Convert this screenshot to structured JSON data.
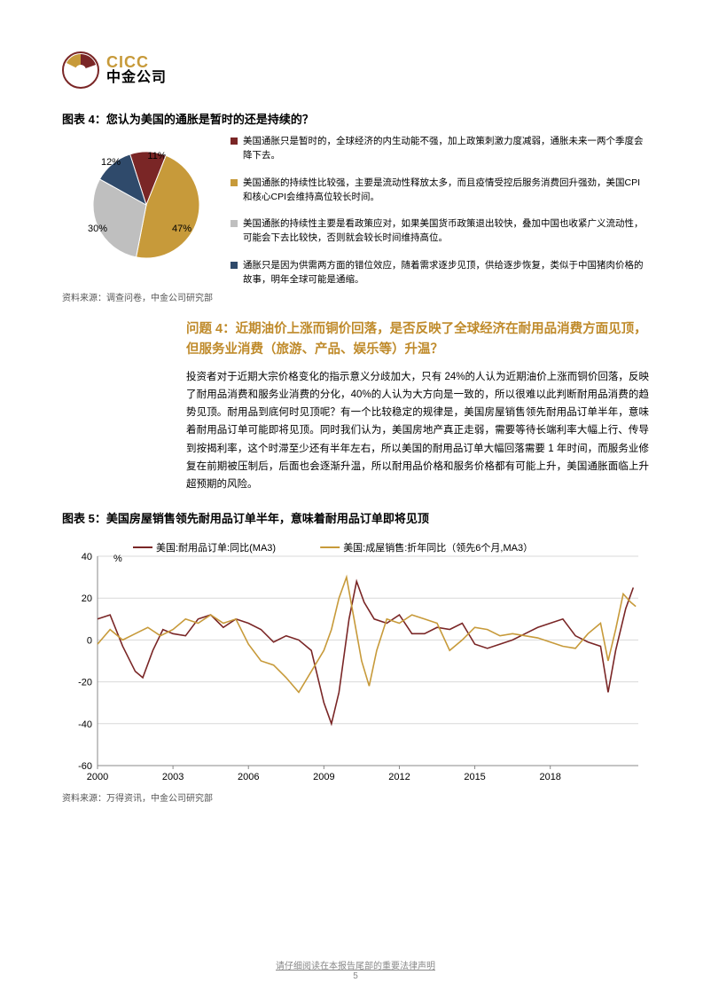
{
  "logo": {
    "en": "CICC",
    "cn": "中金公司"
  },
  "chart4": {
    "title": "图表 4：您认为美国的通胀是暂时的还是持续的？",
    "type": "pie",
    "slices": [
      {
        "label": "11%",
        "value": 11,
        "color": "#7a2626"
      },
      {
        "label": "47%",
        "value": 47,
        "color": "#c79a3a"
      },
      {
        "label": "30%",
        "value": 30,
        "color": "#bfbfbf"
      },
      {
        "label": "12%",
        "value": 12,
        "color": "#2f4a6b"
      }
    ],
    "legend": [
      {
        "color": "#7a2626",
        "text": "美国通胀只是暂时的，全球经济的内生动能不强，加上政策刺激力度减弱，通胀未来一两个季度会降下去。"
      },
      {
        "color": "#c79a3a",
        "text": "美国通胀的持续性比较强，主要是流动性释放太多，而且疫情受控后服务消费回升强劲，美国CPI和核心CPI会维持高位较长时间。"
      },
      {
        "color": "#bfbfbf",
        "text": "美国通胀的持续性主要是看政策应对，如果美国货币政策退出较快，叠加中国也收紧广义流动性，可能会下去比较快，否则就会较长时间维持高位。"
      },
      {
        "color": "#2f4a6b",
        "text": "通胀只是因为供需两方面的错位效应，随着需求逐步见顶，供给逐步恢复，类似于中国猪肉价格的故事，明年全球可能是通缩。"
      }
    ],
    "source": "资料来源：调查问卷，中金公司研究部"
  },
  "question4": {
    "title": "问题 4：近期油价上涨而铜价回落，是否反映了全球经济在耐用品消费方面见顶，但服务业消费（旅游、产品、娱乐等）升温？",
    "body": "投资者对于近期大宗价格变化的指示意义分歧加大，只有 24%的人认为近期油价上涨而铜价回落，反映了耐用品消费和服务业消费的分化，40%的人认为大方向是一致的，所以很难以此判断耐用品消费的趋势见顶。耐用品到底何时见顶呢？有一个比较稳定的规律是，美国房屋销售领先耐用品订单半年，意味着耐用品订单可能即将见顶。同时我们认为，美国房地产真正走弱，需要等待长端利率大幅上行、传导到按揭利率，这个时滞至少还有半年左右，所以美国的耐用品订单大幅回落需要 1 年时间，而服务业修复在前期被压制后，后面也会逐渐升温，所以耐用品价格和服务价格都有可能上升，美国通胀面临上升超预期的风险。"
  },
  "chart5": {
    "title": "图表 5：美国房屋销售领先耐用品订单半年，意味着耐用品订单即将见顶",
    "type": "line",
    "ylabel": "%",
    "ylim": [
      -60,
      40
    ],
    "ytick_step": 20,
    "xticks": [
      "2000",
      "2003",
      "2006",
      "2009",
      "2012",
      "2015",
      "2018"
    ],
    "xrange": [
      2000,
      2021.5
    ],
    "grid_color": "#d9d9d9",
    "bg_color": "#ffffff",
    "axis_color": "#888888",
    "series": [
      {
        "name": "美国:耐用品订单:同比(MA3)",
        "color": "#7a2626",
        "width": 1.6,
        "points": [
          [
            2000.0,
            10
          ],
          [
            2000.5,
            12
          ],
          [
            2001.0,
            -3
          ],
          [
            2001.5,
            -15
          ],
          [
            2001.8,
            -18
          ],
          [
            2002.2,
            -5
          ],
          [
            2002.6,
            5
          ],
          [
            2003.0,
            3
          ],
          [
            2003.5,
            2
          ],
          [
            2004.0,
            10
          ],
          [
            2004.5,
            12
          ],
          [
            2005.0,
            6
          ],
          [
            2005.5,
            10
          ],
          [
            2006.0,
            8
          ],
          [
            2006.5,
            5
          ],
          [
            2007.0,
            -1
          ],
          [
            2007.5,
            2
          ],
          [
            2008.0,
            0
          ],
          [
            2008.5,
            -5
          ],
          [
            2009.0,
            -30
          ],
          [
            2009.3,
            -40
          ],
          [
            2009.6,
            -25
          ],
          [
            2010.0,
            10
          ],
          [
            2010.3,
            28
          ],
          [
            2010.6,
            18
          ],
          [
            2011.0,
            10
          ],
          [
            2011.5,
            8
          ],
          [
            2012.0,
            12
          ],
          [
            2012.5,
            3
          ],
          [
            2013.0,
            3
          ],
          [
            2013.5,
            6
          ],
          [
            2014.0,
            5
          ],
          [
            2014.5,
            8
          ],
          [
            2015.0,
            -2
          ],
          [
            2015.5,
            -4
          ],
          [
            2016.0,
            -2
          ],
          [
            2016.5,
            0
          ],
          [
            2017.0,
            3
          ],
          [
            2017.5,
            6
          ],
          [
            2018.0,
            8
          ],
          [
            2018.5,
            10
          ],
          [
            2019.0,
            2
          ],
          [
            2019.5,
            -1
          ],
          [
            2020.0,
            -3
          ],
          [
            2020.3,
            -25
          ],
          [
            2020.6,
            -5
          ],
          [
            2021.0,
            15
          ],
          [
            2021.3,
            25
          ]
        ]
      },
      {
        "name": "美国:成屋销售:折年同比（领先6个月,MA3）",
        "color": "#c79a3a",
        "width": 1.6,
        "points": [
          [
            2000.0,
            -2
          ],
          [
            2000.5,
            5
          ],
          [
            2001.0,
            0
          ],
          [
            2001.5,
            3
          ],
          [
            2002.0,
            6
          ],
          [
            2002.5,
            2
          ],
          [
            2003.0,
            5
          ],
          [
            2003.5,
            10
          ],
          [
            2004.0,
            8
          ],
          [
            2004.5,
            12
          ],
          [
            2005.0,
            8
          ],
          [
            2005.5,
            10
          ],
          [
            2006.0,
            -2
          ],
          [
            2006.5,
            -10
          ],
          [
            2007.0,
            -12
          ],
          [
            2007.5,
            -18
          ],
          [
            2008.0,
            -25
          ],
          [
            2008.5,
            -15
          ],
          [
            2009.0,
            -5
          ],
          [
            2009.3,
            5
          ],
          [
            2009.6,
            20
          ],
          [
            2009.9,
            30
          ],
          [
            2010.2,
            10
          ],
          [
            2010.5,
            -10
          ],
          [
            2010.8,
            -22
          ],
          [
            2011.1,
            -5
          ],
          [
            2011.5,
            10
          ],
          [
            2012.0,
            8
          ],
          [
            2012.5,
            12
          ],
          [
            2013.0,
            10
          ],
          [
            2013.5,
            8
          ],
          [
            2014.0,
            -5
          ],
          [
            2014.5,
            0
          ],
          [
            2015.0,
            6
          ],
          [
            2015.5,
            5
          ],
          [
            2016.0,
            2
          ],
          [
            2016.5,
            3
          ],
          [
            2017.0,
            2
          ],
          [
            2017.5,
            1
          ],
          [
            2018.0,
            -1
          ],
          [
            2018.5,
            -3
          ],
          [
            2019.0,
            -4
          ],
          [
            2019.5,
            3
          ],
          [
            2020.0,
            8
          ],
          [
            2020.3,
            -10
          ],
          [
            2020.6,
            5
          ],
          [
            2020.9,
            22
          ],
          [
            2021.2,
            18
          ],
          [
            2021.4,
            16
          ]
        ]
      }
    ],
    "source": "资料来源：万得资讯，中金公司研究部"
  },
  "footer": {
    "disclaimer": "请仔细阅读在本报告尾部的重要法律声明",
    "page": "5"
  }
}
